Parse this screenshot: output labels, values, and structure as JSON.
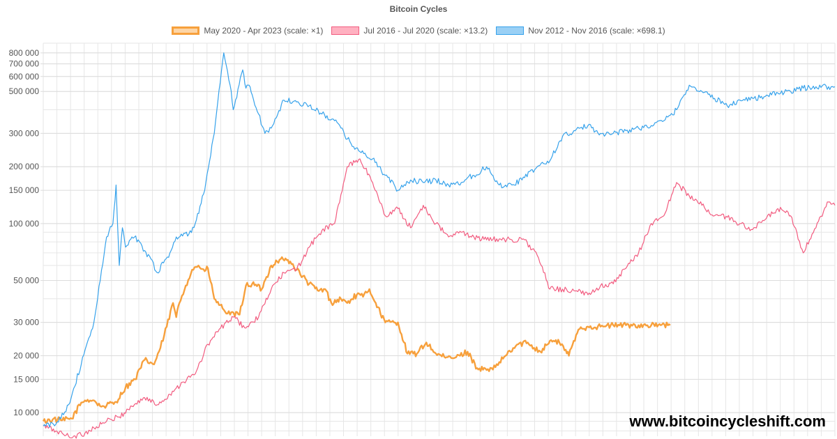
{
  "chart_data": {
    "type": "line",
    "title": "Bitcoin Cycles",
    "xlabel": "",
    "ylabel": "",
    "y_scale": "log",
    "ylim": [
      7500,
      900000
    ],
    "x_range": [
      0,
      1250
    ],
    "x_unit": "days from cycle start",
    "grid": true,
    "legend_position": "top",
    "y_ticks": [
      {
        "value": 10000,
        "label": "10 000"
      },
      {
        "value": 15000,
        "label": "15 000"
      },
      {
        "value": 20000,
        "label": "20 000"
      },
      {
        "value": 30000,
        "label": "30 000"
      },
      {
        "value": 50000,
        "label": "50 000"
      },
      {
        "value": 100000,
        "label": "100 000"
      },
      {
        "value": 150000,
        "label": "150 000"
      },
      {
        "value": 200000,
        "label": "200 000"
      },
      {
        "value": 300000,
        "label": "300 000"
      },
      {
        "value": 500000,
        "label": "500 000"
      },
      {
        "value": 600000,
        "label": "600 000"
      },
      {
        "value": 700000,
        "label": "700 000"
      },
      {
        "value": 800000,
        "label": "800 000"
      }
    ],
    "series": [
      {
        "name": "May 2020 - Apr 2023 (scale: ×1)",
        "color": "#f7a03c",
        "fill": "#fdd5a6",
        "stroke_width": 2.4,
        "x": [
          0,
          15,
          30,
          45,
          60,
          70,
          80,
          90,
          100,
          115,
          130,
          145,
          160,
          175,
          185,
          195,
          205,
          210,
          215,
          225,
          235,
          245,
          255,
          260,
          270,
          285,
          295,
          310,
          320,
          330,
          345,
          360,
          375,
          390,
          400,
          420,
          435,
          445,
          455,
          470,
          480,
          495,
          505,
          515,
          525,
          540,
          560,
          575,
          590,
          605,
          620,
          635,
          650,
          670,
          685,
          700,
          710,
          730,
          750,
          765,
          785,
          800,
          815,
          825,
          830,
          845,
          860,
          880,
          900,
          920,
          940,
          960,
          975,
          990
        ],
        "values": [
          9000,
          9200,
          9100,
          9300,
          11300,
          11700,
          11600,
          10800,
          10900,
          11400,
          13600,
          15000,
          19000,
          18000,
          22000,
          28500,
          38000,
          32000,
          38000,
          47000,
          57000,
          60000,
          56000,
          58000,
          40000,
          35000,
          33000,
          33000,
          47000,
          48000,
          45000,
          60000,
          65000,
          63000,
          57000,
          48000,
          44000,
          45000,
          38000,
          40000,
          38000,
          42000,
          41000,
          45000,
          38000,
          30000,
          30000,
          20500,
          20500,
          23500,
          20500,
          19500,
          19500,
          21000,
          17200,
          16800,
          16900,
          20000,
          23000,
          23500,
          21000,
          24000,
          23500,
          21500,
          20000,
          27500,
          28500,
          28500,
          29000,
          29000,
          29000,
          29000,
          29000,
          29000
        ]
      },
      {
        "name": "Jul 2016 - Jul 2020 (scale: ×13.2)",
        "color": "#f25b7f",
        "fill": "#ffb1c1",
        "stroke_width": 1.2,
        "x": [
          0,
          20,
          40,
          60,
          80,
          100,
          120,
          140,
          160,
          180,
          200,
          220,
          240,
          260,
          280,
          300,
          320,
          340,
          360,
          380,
          400,
          420,
          440,
          460,
          480,
          500,
          520,
          540,
          560,
          580,
          600,
          620,
          640,
          660,
          680,
          700,
          720,
          740,
          760,
          780,
          800,
          820,
          840,
          860,
          880,
          900,
          920,
          940,
          960,
          980,
          1000,
          1020,
          1040,
          1060,
          1080,
          1100,
          1120,
          1140,
          1160,
          1180,
          1200,
          1220,
          1240,
          1250
        ],
        "values": [
          8500,
          8000,
          7500,
          7600,
          8300,
          9000,
          9500,
          10800,
          12000,
          11000,
          12500,
          14500,
          16000,
          23000,
          28000,
          32000,
          28000,
          32000,
          45000,
          55000,
          57000,
          75000,
          92000,
          100000,
          200000,
          220000,
          165000,
          110000,
          120000,
          95000,
          125000,
          100000,
          85000,
          90000,
          85000,
          82000,
          83000,
          82000,
          82000,
          68000,
          45000,
          45000,
          44000,
          42000,
          47000,
          48000,
          58000,
          70000,
          100000,
          110000,
          165000,
          140000,
          125000,
          110000,
          108000,
          100000,
          93000,
          105000,
          120000,
          110000,
          70000,
          95000,
          130000,
          125000
        ]
      },
      {
        "name": "Nov 2012 - Nov 2016 (scale: ×698.1)",
        "color": "#36a2eb",
        "fill": "#9ad0f5",
        "stroke_width": 1.2,
        "x": [
          0,
          20,
          40,
          60,
          80,
          90,
          100,
          110,
          115,
          120,
          125,
          130,
          140,
          150,
          160,
          170,
          180,
          190,
          200,
          210,
          220,
          230,
          240,
          255,
          270,
          285,
          295,
          300,
          315,
          320,
          325,
          330,
          340,
          350,
          360,
          380,
          400,
          420,
          440,
          460,
          470,
          480,
          500,
          520,
          540,
          560,
          580,
          600,
          620,
          640,
          660,
          670,
          680,
          700,
          720,
          740,
          760,
          780,
          800,
          820,
          840,
          860,
          880,
          900,
          920,
          940,
          960,
          980,
          1000,
          1020,
          1040,
          1060,
          1080,
          1100,
          1120,
          1140,
          1160,
          1180,
          1200,
          1220,
          1240,
          1250
        ],
        "values": [
          8500,
          8700,
          11000,
          18000,
          30000,
          50000,
          85000,
          100000,
          160000,
          60000,
          95000,
          75000,
          85000,
          82000,
          72000,
          65000,
          55000,
          62000,
          70000,
          85000,
          86000,
          88000,
          100000,
          150000,
          300000,
          800000,
          540000,
          400000,
          650000,
          520000,
          540000,
          480000,
          380000,
          300000,
          320000,
          450000,
          440000,
          420000,
          380000,
          350000,
          320000,
          280000,
          240000,
          220000,
          180000,
          150000,
          170000,
          165000,
          170000,
          160000,
          165000,
          175000,
          180000,
          200000,
          160000,
          160000,
          175000,
          200000,
          215000,
          290000,
          310000,
          330000,
          300000,
          300000,
          310000,
          320000,
          330000,
          350000,
          400000,
          540000,
          500000,
          460000,
          420000,
          450000,
          460000,
          470000,
          490000,
          500000,
          520000,
          530000,
          530000,
          530000
        ]
      }
    ]
  },
  "watermark": "www.bitcoincycleshift.com"
}
